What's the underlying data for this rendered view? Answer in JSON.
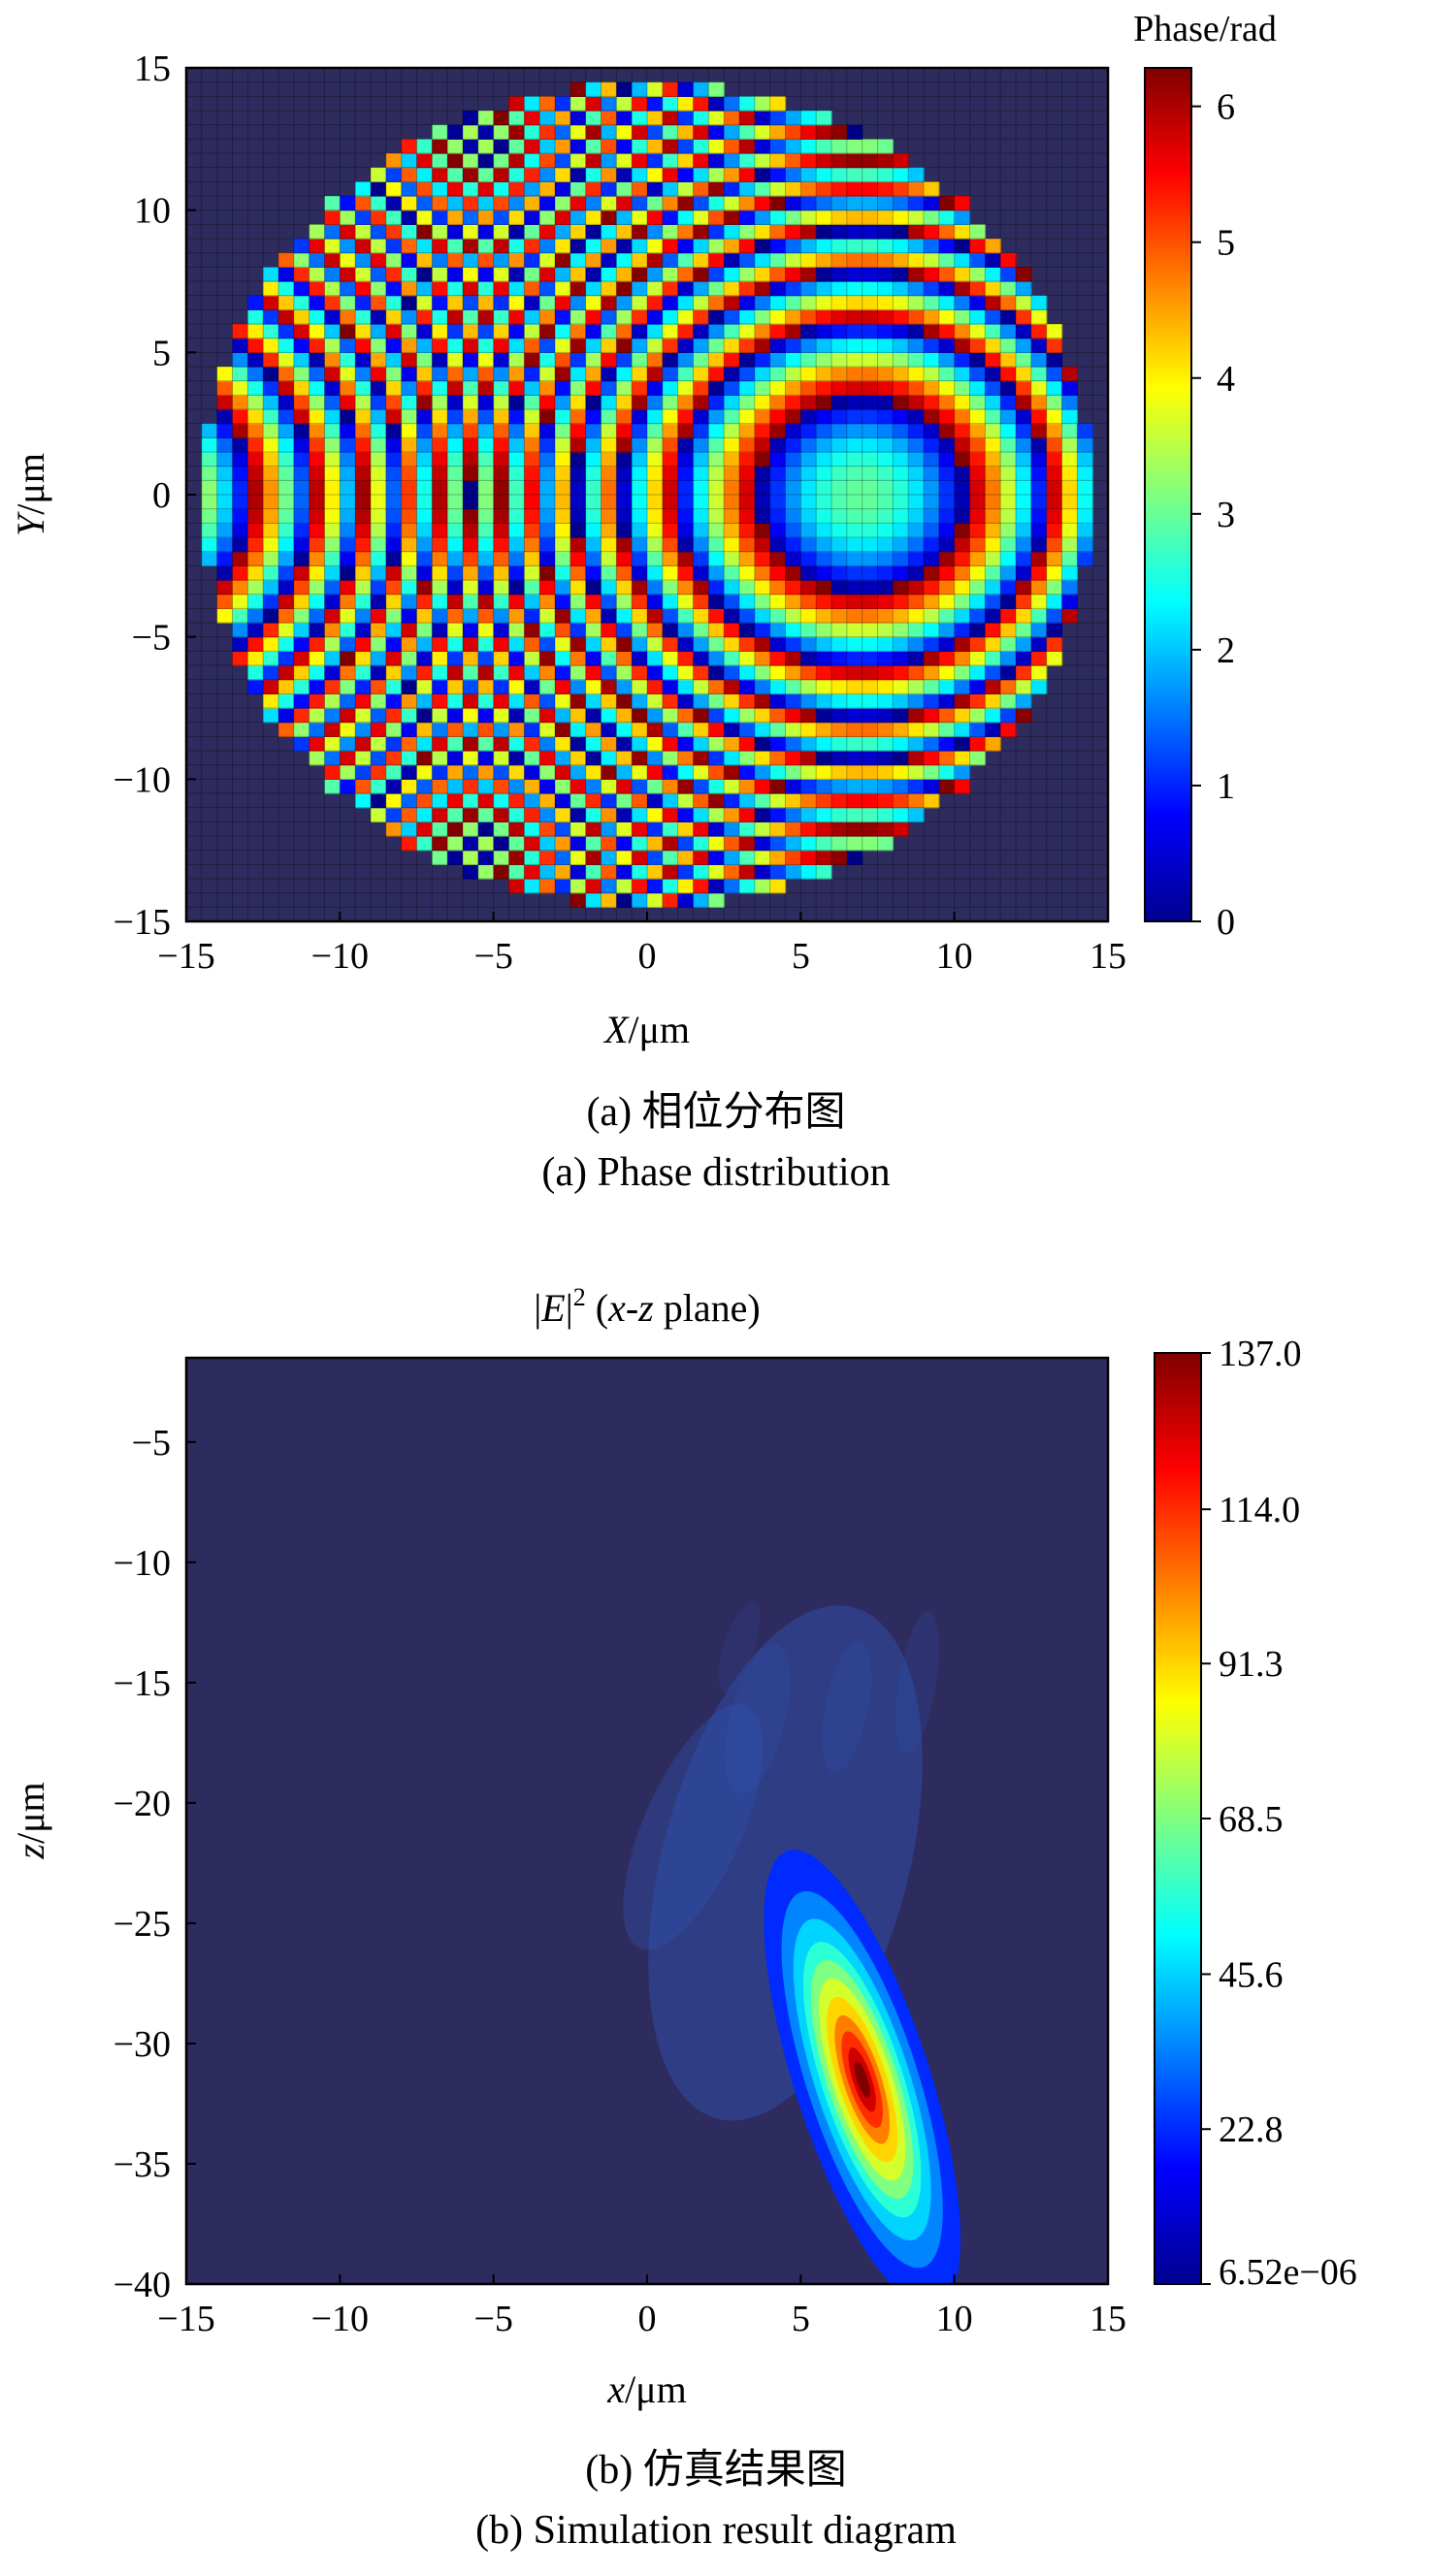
{
  "chart_data": [
    {
      "type": "heatmap",
      "panel": "(a)",
      "title": "",
      "xlabel": "X/μm",
      "ylabel": "Y/μm",
      "xlim": [
        -15,
        15
      ],
      "ylim": [
        -15,
        15
      ],
      "xticks": [
        "−15",
        "−10",
        "−5",
        "0",
        "5",
        "10",
        "15"
      ],
      "yticks": [
        "15",
        "10",
        "5",
        "0",
        "−5",
        "−10",
        "−15"
      ],
      "grid": true,
      "colorbar": {
        "title": "Phase/rad",
        "range": [
          0,
          6.283
        ],
        "ticks": [
          "6",
          "5",
          "4",
          "3",
          "2",
          "1",
          "0"
        ],
        "colormap": "jet"
      },
      "field": {
        "description": "Wrapped lens phase on a ~0.5 μm grid inside a circular aperture of radius ~14.5 μm centered at (0,0); ring pattern centered near (7, 0) μm",
        "aperture_center": [
          0,
          0
        ],
        "aperture_radius": 14.5,
        "phase_center": [
          7,
          0
        ],
        "phase_at_center": 3.0,
        "grid_step": 0.5
      },
      "caption_zh": "(a) 相位分布图",
      "caption_en": "(a) Phase distribution"
    },
    {
      "type": "heatmap",
      "panel": "(b)",
      "title_parts": [
        "|",
        "E",
        "|",
        "2",
        " (",
        "x",
        "-",
        "z",
        " plane)"
      ],
      "xlabel": "x/μm",
      "ylabel": "z/μm",
      "xlim": [
        -15,
        15
      ],
      "ylim": [
        -40,
        -1.5
      ],
      "xticks": [
        "−15",
        "−10",
        "−5",
        "0",
        "5",
        "10",
        "15"
      ],
      "yticks": [
        "−5",
        "−10",
        "−15",
        "−20",
        "−25",
        "−30",
        "−35",
        "−40"
      ],
      "colorbar": {
        "range": [
          6.52e-06,
          137.0
        ],
        "ticks": [
          "137.0",
          "114.0",
          "91.3",
          "68.5",
          "45.6",
          "22.8",
          "6.52e−06"
        ],
        "colormap": "jet"
      },
      "focal_spot": {
        "center": [
          7.0,
          -31.5
        ],
        "peak_value": 137.0,
        "axis_tilt_deg": -18
      },
      "caption_zh": "(b) 仿真结果图",
      "caption_en": "(b) Simulation result diagram"
    }
  ]
}
